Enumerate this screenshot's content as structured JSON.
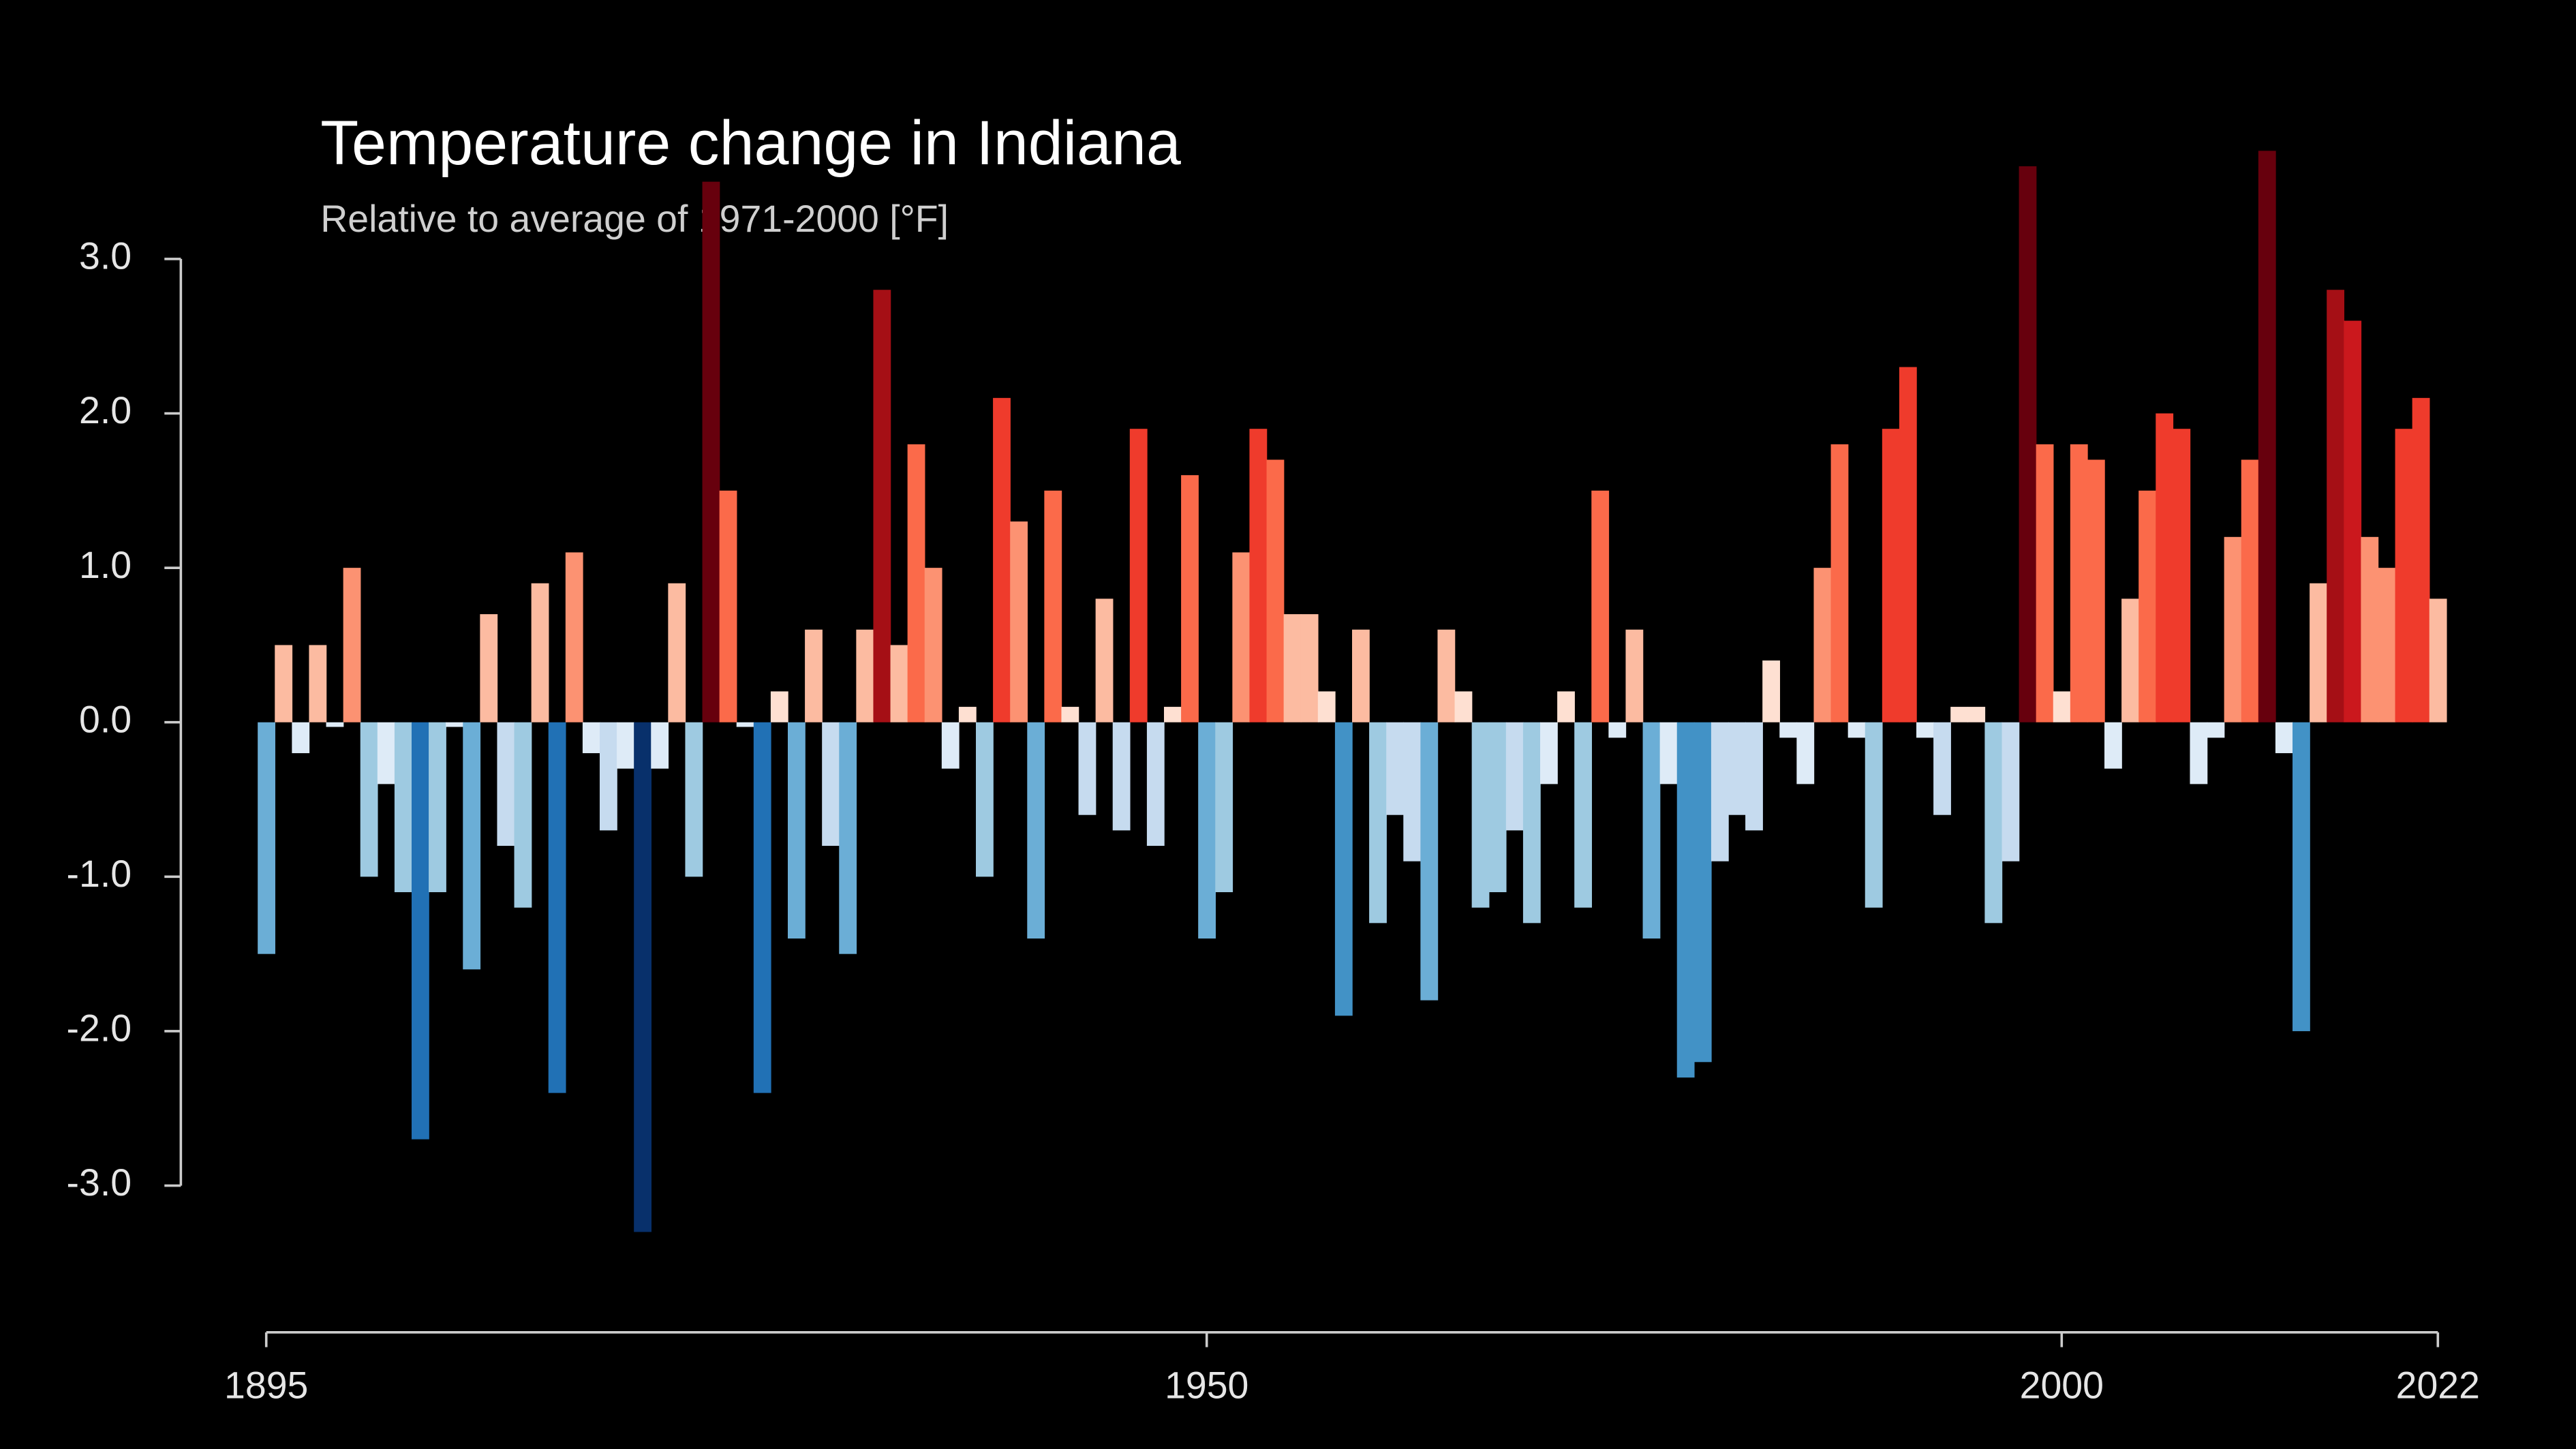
{
  "chart_data": {
    "type": "bar",
    "title": "Temperature change in Indiana",
    "subtitle": "Relative to average of 1971-2000  [°F]",
    "x": [
      1895,
      1896,
      1897,
      1898,
      1899,
      1900,
      1901,
      1902,
      1903,
      1904,
      1905,
      1906,
      1907,
      1908,
      1909,
      1910,
      1911,
      1912,
      1913,
      1914,
      1915,
      1916,
      1917,
      1918,
      1919,
      1920,
      1921,
      1922,
      1923,
      1924,
      1925,
      1926,
      1927,
      1928,
      1929,
      1930,
      1931,
      1932,
      1933,
      1934,
      1935,
      1936,
      1937,
      1938,
      1939,
      1940,
      1941,
      1942,
      1943,
      1944,
      1945,
      1946,
      1947,
      1948,
      1949,
      1950,
      1951,
      1952,
      1953,
      1954,
      1955,
      1956,
      1957,
      1958,
      1959,
      1960,
      1961,
      1962,
      1963,
      1964,
      1965,
      1966,
      1967,
      1968,
      1969,
      1970,
      1971,
      1972,
      1973,
      1974,
      1975,
      1976,
      1977,
      1978,
      1979,
      1980,
      1981,
      1982,
      1983,
      1984,
      1985,
      1986,
      1987,
      1988,
      1989,
      1990,
      1991,
      1992,
      1993,
      1994,
      1995,
      1996,
      1997,
      1998,
      1999,
      2000,
      2001,
      2002,
      2003,
      2004,
      2005,
      2006,
      2007,
      2008,
      2009,
      2010,
      2011,
      2012,
      2013,
      2014,
      2015,
      2016,
      2017,
      2018,
      2019,
      2020,
      2021,
      2022
    ],
    "values": [
      -1.5,
      0.5,
      -0.2,
      0.5,
      -0.03,
      1.0,
      -1.0,
      -0.4,
      -1.1,
      -2.7,
      -1.1,
      -0.03,
      -1.6,
      0.7,
      -0.8,
      -1.2,
      0.9,
      -2.4,
      1.1,
      -0.2,
      -0.7,
      -0.3,
      -3.3,
      -0.3,
      0.9,
      -1.0,
      3.5,
      1.5,
      -0.03,
      -2.4,
      0.2,
      -1.4,
      0.6,
      -0.8,
      -1.5,
      0.6,
      2.8,
      0.5,
      1.8,
      1.0,
      -0.3,
      0.1,
      -1.0,
      2.1,
      1.3,
      -1.4,
      1.5,
      0.1,
      -0.6,
      0.8,
      -0.7,
      1.9,
      -0.8,
      0.1,
      1.6,
      -1.4,
      -1.1,
      1.1,
      1.9,
      1.7,
      0.7,
      0.7,
      0.2,
      -1.9,
      0.6,
      -1.3,
      -0.6,
      -0.9,
      -1.8,
      0.6,
      0.2,
      -1.2,
      -1.1,
      -0.7,
      -1.3,
      -0.4,
      0.2,
      -1.2,
      1.5,
      -0.1,
      0.6,
      -1.4,
      -0.4,
      -2.3,
      -2.2,
      -0.9,
      -0.6,
      -0.7,
      0.4,
      -0.1,
      -0.4,
      1.0,
      1.8,
      -0.1,
      -1.2,
      1.9,
      2.3,
      -0.1,
      -0.6,
      0.1,
      0.1,
      -1.3,
      -0.9,
      3.6,
      1.8,
      0.2,
      1.8,
      1.7,
      -0.3,
      0.8,
      1.5,
      2.0,
      1.9,
      -0.4,
      -0.1,
      1.2,
      1.7,
      3.7,
      -0.2,
      -2.0,
      0.9,
      2.8,
      2.6,
      1.2,
      1.0,
      1.9,
      2.1,
      0.8
    ],
    "palette": [
      "#08306b",
      "#08519c",
      "#2171b5",
      "#4292c6",
      "#6baed6",
      "#9ecae1",
      "#c6dbef",
      "#deebf7",
      "#fee0d2",
      "#fcbba1",
      "#fc9272",
      "#fb6a4a",
      "#ef3b2c",
      "#cb181d",
      "#a50f15",
      "#67000d"
    ],
    "xlim": [
      1895,
      2022
    ],
    "xticks": [
      1895,
      1950,
      2000,
      2022
    ],
    "ylim": [
      -3.95,
      3.9
    ],
    "yticks": [
      {
        "value": -3,
        "label": "-3.0"
      },
      {
        "value": -2,
        "label": "-2.0"
      },
      {
        "value": -1,
        "label": "-1.0"
      },
      {
        "value": 0,
        "label": "0.0"
      },
      {
        "value": 1,
        "label": "1.0"
      },
      {
        "value": 2,
        "label": "2.0"
      },
      {
        "value": 3,
        "label": "3.0"
      }
    ]
  }
}
